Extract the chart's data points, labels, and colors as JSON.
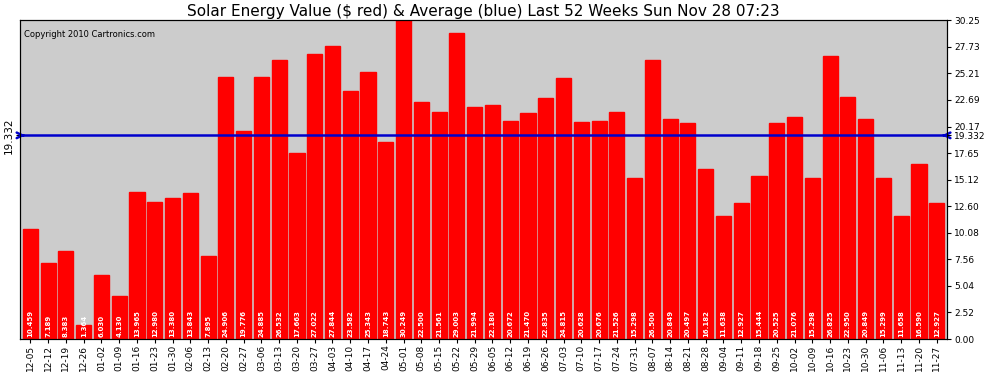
{
  "title": "Solar Energy Value ($ red) & Average (blue) Last 52 Weeks Sun Nov 28 07:23",
  "copyright": "Copyright 2010 Cartronics.com",
  "average_value": 19.332,
  "bar_color": "#ff0000",
  "avg_line_color": "#0000cc",
  "background_color": "#ffffff",
  "plot_bg_color": "#cccccc",
  "grid_color": "#ffffff",
  "categories": [
    "12-05",
    "12-12",
    "12-19",
    "12-26",
    "01-02",
    "01-09",
    "01-16",
    "01-23",
    "01-30",
    "02-06",
    "02-13",
    "02-20",
    "02-27",
    "03-06",
    "03-13",
    "03-20",
    "03-27",
    "04-03",
    "04-10",
    "04-17",
    "04-24",
    "05-01",
    "05-08",
    "05-15",
    "05-22",
    "05-29",
    "06-05",
    "06-12",
    "06-19",
    "06-26",
    "07-03",
    "07-10",
    "07-17",
    "07-24",
    "07-31",
    "08-07",
    "08-14",
    "08-21",
    "08-28",
    "09-04",
    "09-11",
    "09-18",
    "09-25",
    "10-02",
    "10-09",
    "10-16",
    "10-23",
    "10-30",
    "11-06",
    "11-13",
    "11-20",
    "11-27"
  ],
  "values": [
    10.459,
    7.189,
    8.383,
    1.364,
    6.03,
    4.13,
    13.965,
    12.98,
    13.38,
    13.843,
    7.895,
    24.906,
    19.776,
    24.885,
    26.532,
    17.663,
    27.022,
    27.844,
    23.582,
    25.343,
    18.743,
    30.249,
    22.5,
    21.561,
    29.003,
    21.994,
    22.18,
    20.672,
    21.47,
    22.835,
    24.815,
    20.628,
    20.676,
    21.526,
    15.298,
    26.5,
    20.849,
    20.497,
    16.182,
    11.638,
    12.927,
    15.444,
    20.525,
    21.076,
    15.298,
    26.825,
    22.95,
    20.849,
    15.299,
    11.658,
    16.59,
    12.927
  ],
  "ylim_max": 30.25,
  "yticks_right": [
    0.0,
    2.52,
    5.04,
    7.56,
    10.08,
    12.6,
    15.12,
    17.65,
    20.17,
    22.69,
    25.21,
    27.73,
    30.25
  ],
  "avg_label": "19.332",
  "title_fontsize": 11,
  "tick_fontsize": 6.5,
  "value_fontsize": 5.0,
  "bar_width": 0.85
}
